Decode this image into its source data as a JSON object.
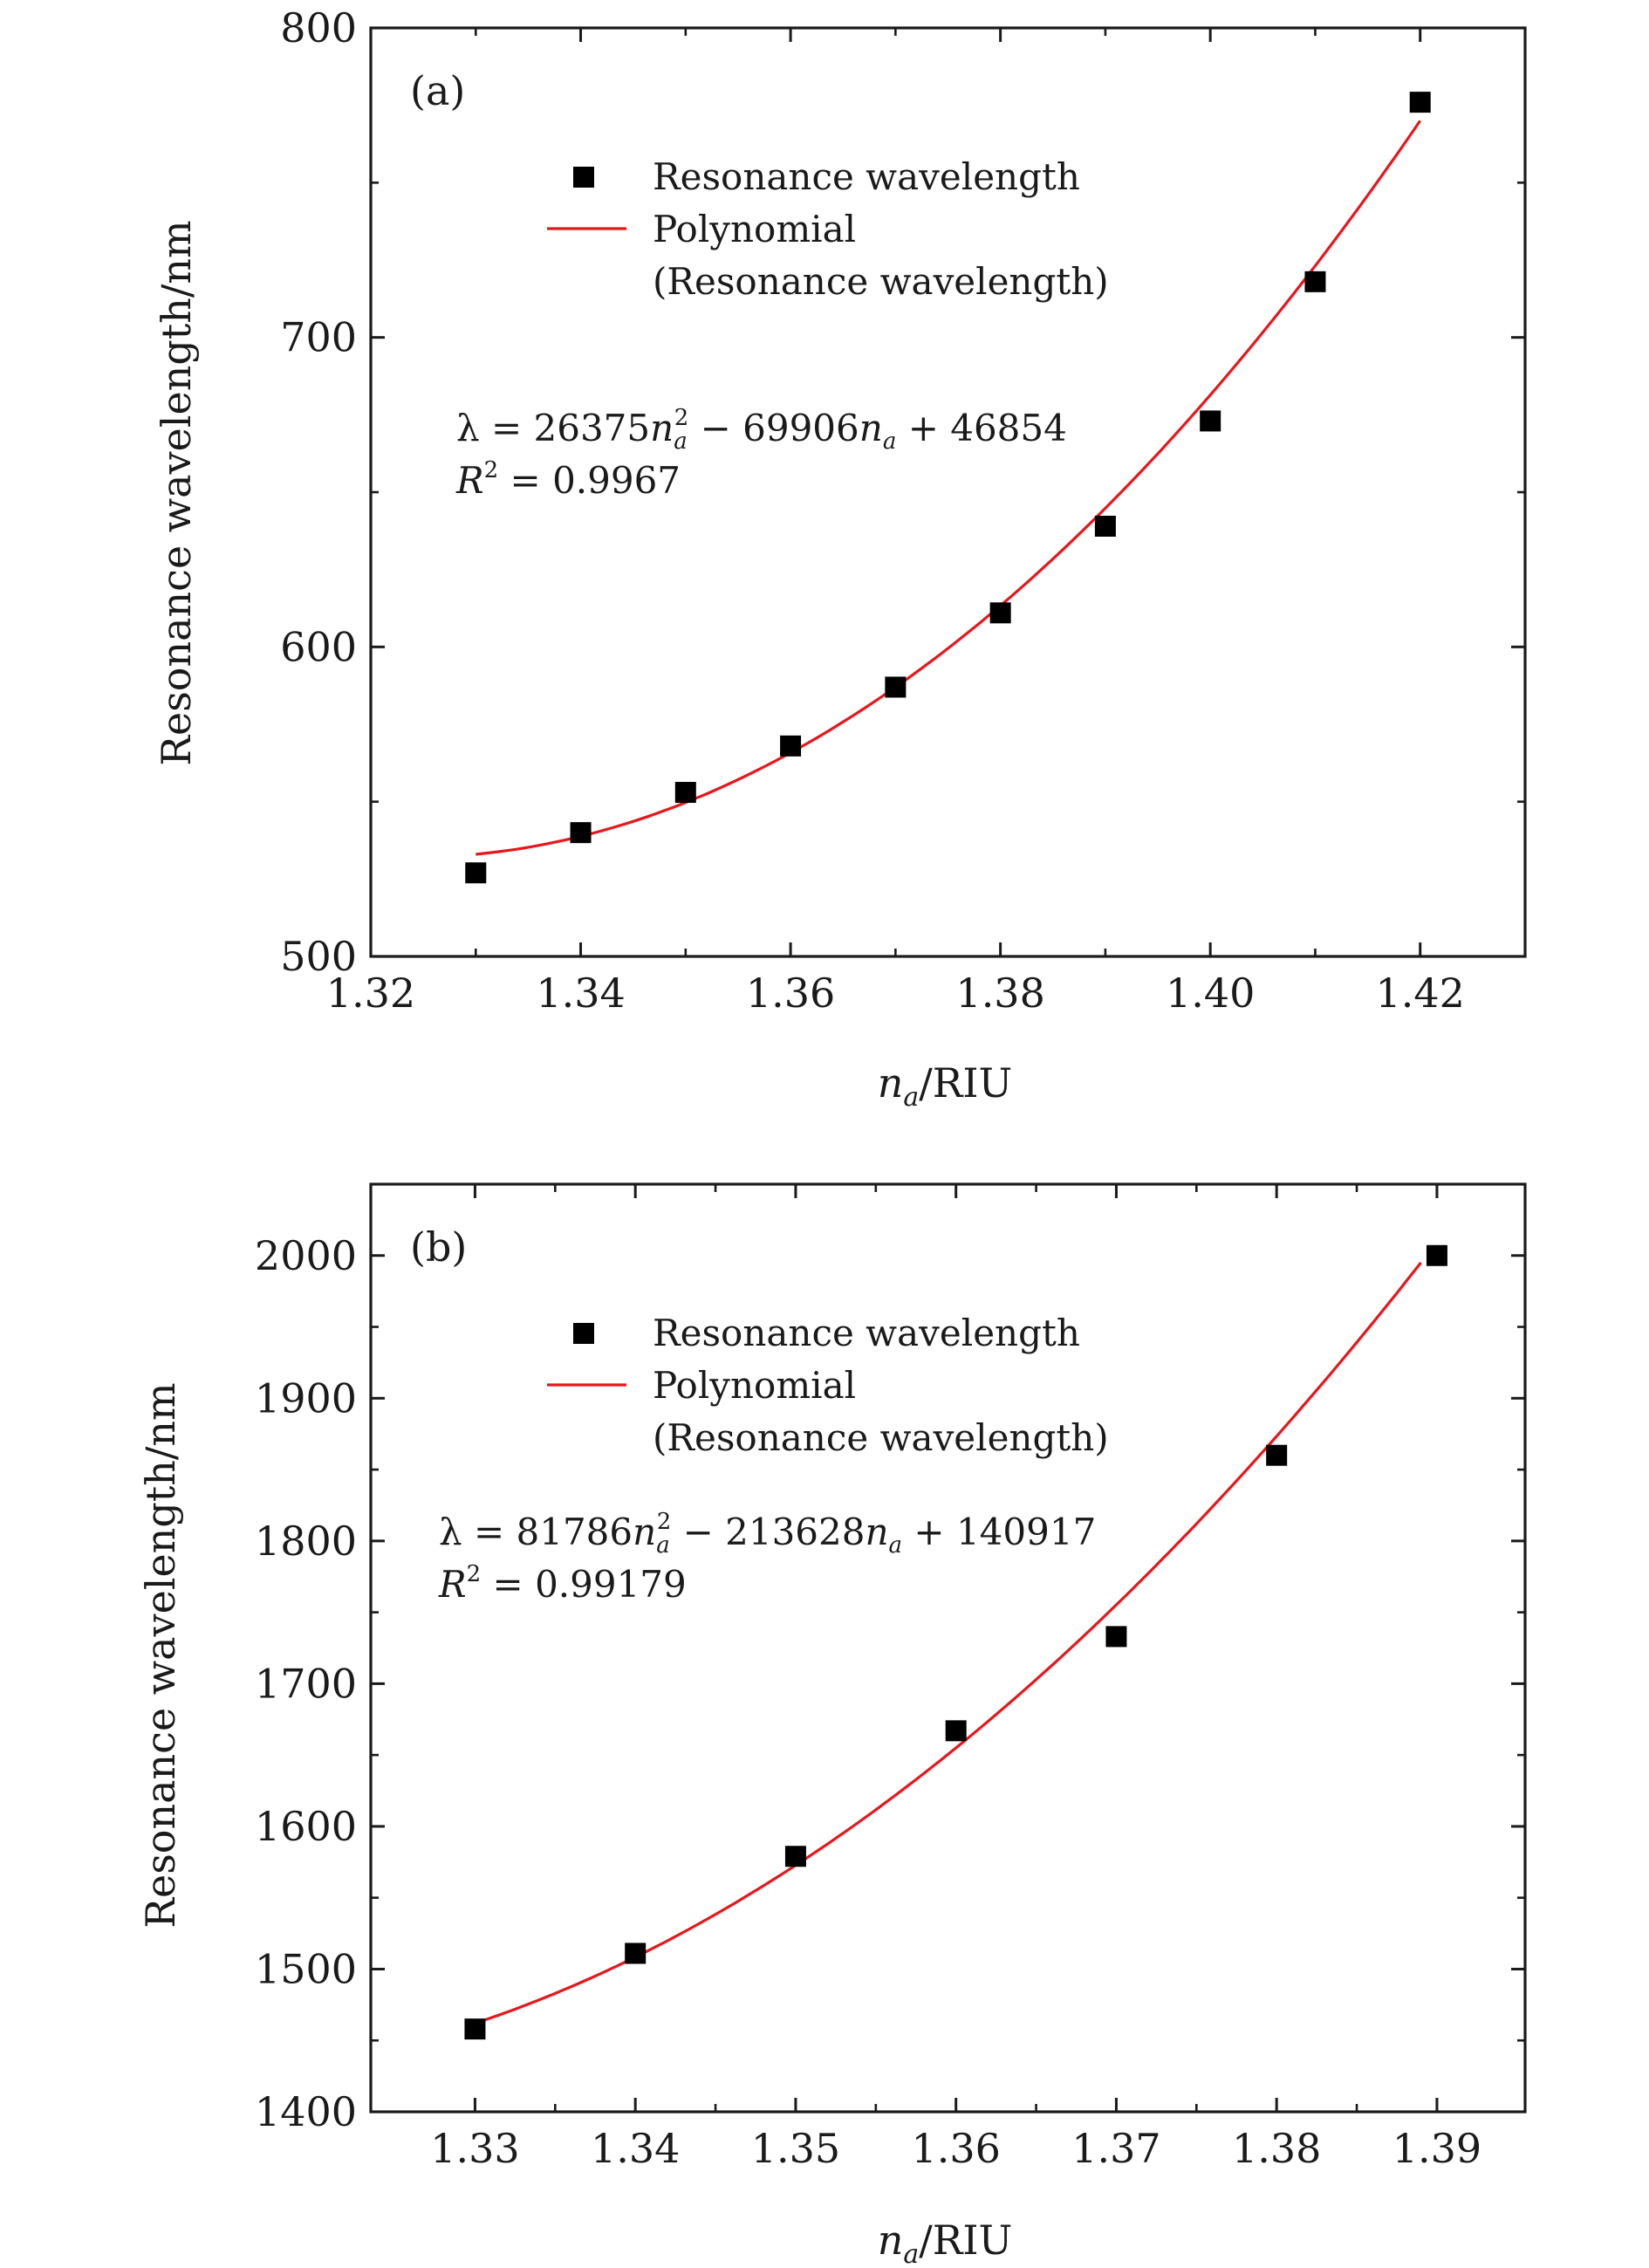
{
  "chart_data": [
    {
      "type": "scatter",
      "panel_label": "(a)",
      "xlabel_var": "n",
      "xlabel_sub": "a",
      "xlabel_unit": "/RIU",
      "ylabel": "Resonance wavelength/nm",
      "xlim": [
        1.32,
        1.43
      ],
      "ylim": [
        500,
        800
      ],
      "xticks": [
        1.32,
        1.34,
        1.36,
        1.38,
        1.4,
        1.42
      ],
      "xtick_labels": [
        "1.32",
        "1.34",
        "1.36",
        "1.38",
        "1.40",
        "1.42"
      ],
      "xminor": [
        1.33,
        1.35,
        1.37,
        1.39,
        1.41,
        1.43
      ],
      "yticks": [
        500,
        600,
        700,
        800
      ],
      "ytick_labels": [
        "500",
        "600",
        "700",
        "800"
      ],
      "yminor": [
        550,
        650,
        750
      ],
      "series": [
        {
          "name": "Resonance wavelength",
          "marker": "square",
          "color": "#000000",
          "x": [
            1.33,
            1.34,
            1.35,
            1.36,
            1.37,
            1.38,
            1.39,
            1.4,
            1.41,
            1.42
          ],
          "y": [
            527,
            540,
            553,
            568,
            587,
            611,
            639,
            673,
            718,
            776
          ]
        },
        {
          "name": "Polynomial",
          "name_line2": "(Resonance wavelength)",
          "type": "line",
          "color": "#e8161b",
          "x_range": [
            1.33,
            1.42
          ],
          "poly_anchor": [
            [
              1.33,
              533
            ],
            [
              1.37,
              587
            ],
            [
              1.42,
              770
            ]
          ]
        }
      ],
      "annotation": {
        "parts": [
          "λ = 26375",
          "n",
          "a",
          "2",
          " − 69906",
          "n",
          "a",
          " + 46854"
        ],
        "r2_label": "R",
        "r2_sup": "2",
        "r2_value": " = 0.9967"
      },
      "legend_position": "top-center"
    },
    {
      "type": "scatter",
      "panel_label": "(b)",
      "xlabel_var": "n",
      "xlabel_sub": "a",
      "xlabel_unit": "/RIU",
      "ylabel": "Resonance wavelength/nm",
      "xlim": [
        1.3235,
        1.3955
      ],
      "ylim": [
        1400,
        2050
      ],
      "xticks": [
        1.33,
        1.34,
        1.35,
        1.36,
        1.37,
        1.38,
        1.39
      ],
      "xtick_labels": [
        "1.33",
        "1.34",
        "1.35",
        "1.36",
        "1.37",
        "1.38",
        "1.39"
      ],
      "xminor": [
        1.335,
        1.345,
        1.355,
        1.365,
        1.375,
        1.385
      ],
      "yticks": [
        1400,
        1500,
        1600,
        1700,
        1800,
        1900,
        2000
      ],
      "ytick_labels": [
        "1400",
        "1500",
        "1600",
        "1700",
        "1800",
        "1900",
        "2000"
      ],
      "yminor": [
        1450,
        1550,
        1650,
        1750,
        1850,
        1950
      ],
      "series": [
        {
          "name": "Resonance wavelength",
          "marker": "square",
          "color": "#000000",
          "x": [
            1.33,
            1.34,
            1.35,
            1.36,
            1.37,
            1.38,
            1.39
          ],
          "y": [
            1458,
            1511,
            1579,
            1667,
            1733,
            1860,
            2000
          ]
        },
        {
          "name": "Polynomial",
          "name_line2": "(Resonance wavelength)",
          "type": "line",
          "color": "#e8161b",
          "x_range": [
            1.33,
            1.389
          ],
          "poly_anchor": [
            [
              1.33,
              1462
            ],
            [
              1.36,
              1655
            ],
            [
              1.389,
              1995
            ]
          ]
        }
      ],
      "annotation": {
        "parts": [
          "λ = 81786",
          "n",
          "a",
          "2",
          " − 213628",
          "n",
          "a",
          " + 140917"
        ],
        "r2_label": "R",
        "r2_sup": "2",
        "r2_value": " = 0.99179"
      },
      "legend_position": "top-center"
    }
  ]
}
